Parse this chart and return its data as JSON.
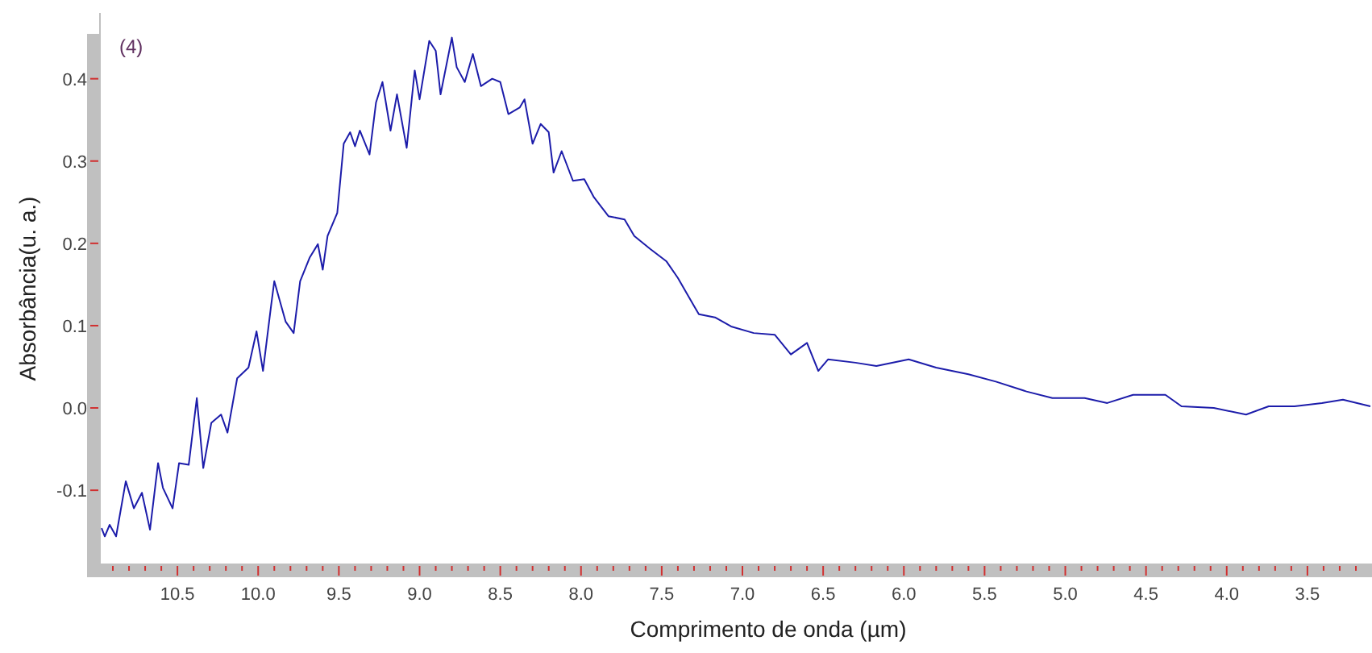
{
  "chart_data": {
    "type": "line",
    "xlabel": "Comprimento de onda (µm)",
    "ylabel": "Absorbância(u. a.)",
    "annotations": [
      "(4)"
    ],
    "xlim": [
      10.98,
      3.1
    ],
    "ylim": [
      -0.19,
      0.48
    ],
    "xticks": [
      {
        "value": 10.9,
        "label": null
      },
      {
        "value": 10.8,
        "label": null
      },
      {
        "value": 10.7,
        "label": null
      },
      {
        "value": 10.6,
        "label": null
      },
      {
        "value": 10.5,
        "label": "10.5"
      },
      {
        "value": 10.4,
        "label": null
      },
      {
        "value": 10.3,
        "label": null
      },
      {
        "value": 10.2,
        "label": null
      },
      {
        "value": 10.1,
        "label": null
      },
      {
        "value": 10.0,
        "label": "10.0"
      },
      {
        "value": 9.9,
        "label": null
      },
      {
        "value": 9.8,
        "label": null
      },
      {
        "value": 9.7,
        "label": null
      },
      {
        "value": 9.6,
        "label": null
      },
      {
        "value": 9.5,
        "label": "9.5"
      },
      {
        "value": 9.4,
        "label": null
      },
      {
        "value": 9.3,
        "label": null
      },
      {
        "value": 9.2,
        "label": null
      },
      {
        "value": 9.1,
        "label": null
      },
      {
        "value": 9.0,
        "label": "9.0"
      },
      {
        "value": 8.9,
        "label": null
      },
      {
        "value": 8.8,
        "label": null
      },
      {
        "value": 8.7,
        "label": null
      },
      {
        "value": 8.6,
        "label": null
      },
      {
        "value": 8.5,
        "label": "8.5"
      },
      {
        "value": 8.4,
        "label": null
      },
      {
        "value": 8.3,
        "label": null
      },
      {
        "value": 8.2,
        "label": null
      },
      {
        "value": 8.1,
        "label": null
      },
      {
        "value": 8.0,
        "label": "8.0"
      },
      {
        "value": 7.9,
        "label": null
      },
      {
        "value": 7.8,
        "label": null
      },
      {
        "value": 7.7,
        "label": null
      },
      {
        "value": 7.6,
        "label": null
      },
      {
        "value": 7.5,
        "label": "7.5"
      },
      {
        "value": 7.4,
        "label": null
      },
      {
        "value": 7.3,
        "label": null
      },
      {
        "value": 7.2,
        "label": null
      },
      {
        "value": 7.1,
        "label": null
      },
      {
        "value": 7.0,
        "label": "7.0"
      },
      {
        "value": 6.9,
        "label": null
      },
      {
        "value": 6.8,
        "label": null
      },
      {
        "value": 6.7,
        "label": null
      },
      {
        "value": 6.6,
        "label": null
      },
      {
        "value": 6.5,
        "label": "6.5"
      },
      {
        "value": 6.4,
        "label": null
      },
      {
        "value": 6.3,
        "label": null
      },
      {
        "value": 6.2,
        "label": null
      },
      {
        "value": 6.1,
        "label": null
      },
      {
        "value": 6.0,
        "label": "6.0"
      },
      {
        "value": 5.9,
        "label": null
      },
      {
        "value": 5.8,
        "label": null
      },
      {
        "value": 5.7,
        "label": null
      },
      {
        "value": 5.6,
        "label": null
      },
      {
        "value": 5.5,
        "label": "5.5"
      },
      {
        "value": 5.4,
        "label": null
      },
      {
        "value": 5.3,
        "label": null
      },
      {
        "value": 5.2,
        "label": null
      },
      {
        "value": 5.1,
        "label": null
      },
      {
        "value": 5.0,
        "label": "5.0"
      },
      {
        "value": 4.9,
        "label": null
      },
      {
        "value": 4.8,
        "label": null
      },
      {
        "value": 4.7,
        "label": null
      },
      {
        "value": 4.6,
        "label": null
      },
      {
        "value": 4.5,
        "label": "4.5"
      },
      {
        "value": 4.4,
        "label": null
      },
      {
        "value": 4.3,
        "label": null
      },
      {
        "value": 4.2,
        "label": null
      },
      {
        "value": 4.1,
        "label": null
      },
      {
        "value": 4.0,
        "label": "4.0"
      },
      {
        "value": 3.9,
        "label": null
      },
      {
        "value": 3.8,
        "label": null
      },
      {
        "value": 3.7,
        "label": null
      },
      {
        "value": 3.6,
        "label": null
      },
      {
        "value": 3.5,
        "label": "3.5"
      },
      {
        "value": 3.4,
        "label": null
      },
      {
        "value": 3.3,
        "label": null
      },
      {
        "value": 3.2,
        "label": null
      }
    ],
    "yticks": [
      -0.1,
      {
        "value": 0,
        "label": "0.0"
      },
      0.1,
      0.2,
      0.3,
      0.4
    ],
    "grid": false,
    "series": [
      {
        "color": "#1c1caa",
        "x": [
          10.97,
          10.95,
          10.92,
          10.88,
          10.82,
          10.77,
          10.72,
          10.67,
          10.62,
          10.59,
          10.53,
          10.49,
          10.43,
          10.38,
          10.34,
          10.29,
          10.23,
          10.19,
          10.13,
          10.06,
          10.01,
          9.97,
          9.92,
          9.9,
          9.83,
          9.78,
          9.74,
          9.68,
          9.63,
          9.6,
          9.57,
          9.51,
          9.47,
          9.43,
          9.4,
          9.37,
          9.31,
          9.27,
          9.23,
          9.18,
          9.14,
          9.08,
          9.03,
          9.0,
          8.94,
          8.9,
          8.87,
          8.8,
          8.77,
          8.72,
          8.67,
          8.62,
          8.55,
          8.5,
          8.45,
          8.38,
          8.35,
          8.3,
          8.25,
          8.2,
          8.17,
          8.12,
          8.05,
          7.98,
          7.92,
          7.83,
          7.73,
          7.67,
          7.57,
          7.47,
          7.4,
          7.3,
          7.27,
          7.17,
          7.07,
          6.93,
          6.8,
          6.7,
          6.6,
          6.53,
          6.47,
          6.3,
          6.17,
          5.97,
          5.8,
          5.6,
          5.43,
          5.24,
          5.08,
          4.88,
          4.74,
          4.58,
          4.38,
          4.28,
          4.08,
          3.88,
          3.74,
          3.58,
          3.41,
          3.28,
          3.11
        ],
        "values": [
          -0.146,
          -0.156,
          -0.142,
          -0.156,
          -0.089,
          -0.122,
          -0.103,
          -0.148,
          -0.067,
          -0.097,
          -0.122,
          -0.067,
          -0.069,
          0.012,
          -0.073,
          -0.018,
          -0.008,
          -0.03,
          0.036,
          0.049,
          0.093,
          0.045,
          0.124,
          0.154,
          0.105,
          0.091,
          0.154,
          0.183,
          0.199,
          0.168,
          0.209,
          0.237,
          0.321,
          0.335,
          0.318,
          0.337,
          0.308,
          0.371,
          0.396,
          0.337,
          0.381,
          0.316,
          0.41,
          0.375,
          0.446,
          0.434,
          0.381,
          0.45,
          0.414,
          0.396,
          0.43,
          0.391,
          0.4,
          0.396,
          0.357,
          0.365,
          0.375,
          0.321,
          0.345,
          0.335,
          0.286,
          0.312,
          0.276,
          0.278,
          0.256,
          0.233,
          0.229,
          0.209,
          0.193,
          0.178,
          0.158,
          0.124,
          0.114,
          0.11,
          0.099,
          0.091,
          0.089,
          0.065,
          0.079,
          0.045,
          0.059,
          0.055,
          0.051,
          0.059,
          0.049,
          0.041,
          0.032,
          0.02,
          0.012,
          0.012,
          0.006,
          0.016,
          0.016,
          0.002,
          0,
          -0.008,
          0.002,
          0.002,
          0.006,
          0.01,
          0.002
        ]
      }
    ]
  }
}
